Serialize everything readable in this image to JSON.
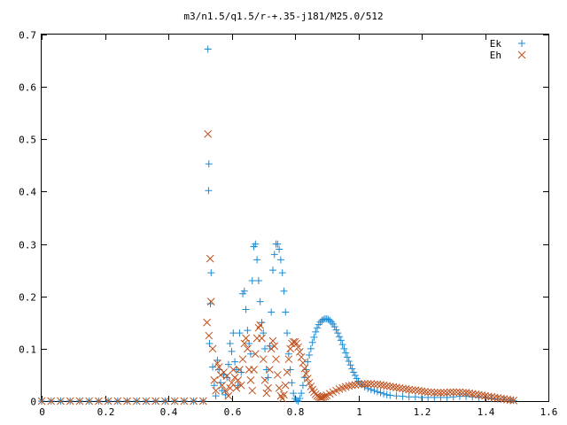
{
  "chart_data": {
    "type": "scatter",
    "title": "m3/n1.5/q1.5/r-+.35-j181/M25.0/512",
    "xlabel": "",
    "ylabel": "",
    "xlim": [
      0,
      1.6
    ],
    "ylim": [
      0,
      0.7
    ],
    "x_tick_labels": [
      "0",
      "0.2",
      "0.4",
      "0.6",
      "0.8",
      "1",
      "1.2",
      "1.4",
      "1.6"
    ],
    "y_tick_labels": [
      "0",
      "0.1",
      "0.2",
      "0.3",
      "0.4",
      "0.5",
      "0.6",
      "0.7"
    ],
    "x_ticks": [
      0,
      0.2,
      0.4,
      0.6,
      0.8,
      1.0,
      1.2,
      1.4,
      1.6
    ],
    "y_ticks": [
      0,
      0.1,
      0.2,
      0.3,
      0.4,
      0.5,
      0.6,
      0.7
    ],
    "grid": false,
    "legend_position": "top-right",
    "series": [
      {
        "name": "Ek",
        "marker": "plus",
        "color": "#1a8ad4",
        "points": [
          [
            0.0,
            0
          ],
          [
            0.03,
            0
          ],
          [
            0.06,
            0
          ],
          [
            0.09,
            0
          ],
          [
            0.12,
            0
          ],
          [
            0.15,
            0
          ],
          [
            0.18,
            0
          ],
          [
            0.21,
            0
          ],
          [
            0.24,
            0
          ],
          [
            0.27,
            0
          ],
          [
            0.3,
            0
          ],
          [
            0.33,
            0
          ],
          [
            0.36,
            0
          ],
          [
            0.39,
            0
          ],
          [
            0.42,
            0
          ],
          [
            0.45,
            0
          ],
          [
            0.48,
            0
          ],
          [
            0.51,
            0
          ],
          [
            0.525,
            0.672
          ],
          [
            0.528,
            0.453
          ],
          [
            0.527,
            0.402
          ],
          [
            0.535,
            0.245
          ],
          [
            0.533,
            0.186
          ],
          [
            0.53,
            0.11
          ],
          [
            0.54,
            0.065
          ],
          [
            0.545,
            0.03
          ],
          [
            0.55,
            0.01
          ],
          [
            0.555,
            0.078
          ],
          [
            0.56,
            0.06
          ],
          [
            0.565,
            0.035
          ],
          [
            0.57,
            0.02
          ],
          [
            0.575,
            0.05
          ],
          [
            0.58,
            0.012
          ],
          [
            0.585,
            0.045
          ],
          [
            0.59,
            0.07
          ],
          [
            0.595,
            0.11
          ],
          [
            0.6,
            0.095
          ],
          [
            0.605,
            0.13
          ],
          [
            0.61,
            0.075
          ],
          [
            0.615,
            0.06
          ],
          [
            0.62,
            0.03
          ],
          [
            0.625,
            0.13
          ],
          [
            0.63,
            0.055
          ],
          [
            0.635,
            0.205
          ],
          [
            0.64,
            0.21
          ],
          [
            0.645,
            0.175
          ],
          [
            0.65,
            0.135
          ],
          [
            0.655,
            0.11
          ],
          [
            0.66,
            0.09
          ],
          [
            0.665,
            0.23
          ],
          [
            0.67,
            0.295
          ],
          [
            0.675,
            0.3
          ],
          [
            0.68,
            0.27
          ],
          [
            0.685,
            0.23
          ],
          [
            0.69,
            0.19
          ],
          [
            0.695,
            0.15
          ],
          [
            0.7,
            0.13
          ],
          [
            0.705,
            0.1
          ],
          [
            0.71,
            0.06
          ],
          [
            0.715,
            0.045
          ],
          [
            0.72,
            0.105
          ],
          [
            0.725,
            0.17
          ],
          [
            0.73,
            0.25
          ],
          [
            0.735,
            0.28
          ],
          [
            0.74,
            0.3
          ],
          [
            0.745,
            0.3
          ],
          [
            0.75,
            0.29
          ],
          [
            0.755,
            0.27
          ],
          [
            0.76,
            0.245
          ],
          [
            0.765,
            0.21
          ],
          [
            0.77,
            0.17
          ],
          [
            0.775,
            0.13
          ],
          [
            0.78,
            0.09
          ],
          [
            0.785,
            0.06
          ],
          [
            0.79,
            0.035
          ],
          [
            0.795,
            0.015
          ],
          [
            0.8,
            0.005
          ],
          [
            0.805,
            0.002
          ],
          [
            0.81,
            0.0
          ],
          [
            0.815,
            0.005
          ],
          [
            0.82,
            0.015
          ],
          [
            0.825,
            0.03
          ],
          [
            0.83,
            0.045
          ],
          [
            0.835,
            0.06
          ],
          [
            0.84,
            0.075
          ],
          [
            0.845,
            0.088
          ],
          [
            0.85,
            0.1
          ],
          [
            0.855,
            0.112
          ],
          [
            0.86,
            0.122
          ],
          [
            0.865,
            0.132
          ],
          [
            0.87,
            0.14
          ],
          [
            0.875,
            0.146
          ],
          [
            0.88,
            0.151
          ],
          [
            0.885,
            0.154
          ],
          [
            0.89,
            0.156
          ],
          [
            0.895,
            0.157
          ],
          [
            0.9,
            0.157
          ],
          [
            0.905,
            0.156
          ],
          [
            0.91,
            0.154
          ],
          [
            0.915,
            0.151
          ],
          [
            0.92,
            0.147
          ],
          [
            0.925,
            0.142
          ],
          [
            0.93,
            0.136
          ],
          [
            0.935,
            0.13
          ],
          [
            0.94,
            0.123
          ],
          [
            0.945,
            0.116
          ],
          [
            0.95,
            0.108
          ],
          [
            0.955,
            0.1
          ],
          [
            0.96,
            0.092
          ],
          [
            0.965,
            0.084
          ],
          [
            0.97,
            0.076
          ],
          [
            0.975,
            0.069
          ],
          [
            0.98,
            0.062
          ],
          [
            0.985,
            0.055
          ],
          [
            0.99,
            0.049
          ],
          [
            0.995,
            0.043
          ],
          [
            1.0,
            0.038
          ],
          [
            1.01,
            0.032
          ],
          [
            1.02,
            0.027
          ],
          [
            1.03,
            0.024
          ],
          [
            1.04,
            0.022
          ],
          [
            1.05,
            0.02
          ],
          [
            1.06,
            0.018
          ],
          [
            1.07,
            0.016
          ],
          [
            1.08,
            0.014
          ],
          [
            1.09,
            0.012
          ],
          [
            1.1,
            0.011
          ],
          [
            1.12,
            0.01
          ],
          [
            1.14,
            0.009
          ],
          [
            1.16,
            0.008
          ],
          [
            1.18,
            0.008
          ],
          [
            1.2,
            0.007
          ],
          [
            1.22,
            0.007
          ],
          [
            1.24,
            0.007
          ],
          [
            1.26,
            0.007
          ],
          [
            1.28,
            0.007
          ],
          [
            1.3,
            0.008
          ],
          [
            1.32,
            0.009
          ],
          [
            1.34,
            0.009
          ],
          [
            1.36,
            0.008
          ],
          [
            1.38,
            0.007
          ],
          [
            1.4,
            0.006
          ],
          [
            1.42,
            0.005
          ],
          [
            1.44,
            0.004
          ],
          [
            1.46,
            0.003
          ],
          [
            1.48,
            0.002
          ],
          [
            1.49,
            0.001
          ]
        ]
      },
      {
        "name": "Eh",
        "marker": "cross",
        "color": "#c0501c",
        "points": [
          [
            0.0,
            0
          ],
          [
            0.03,
            0
          ],
          [
            0.06,
            0
          ],
          [
            0.09,
            0
          ],
          [
            0.12,
            0
          ],
          [
            0.15,
            0
          ],
          [
            0.18,
            0
          ],
          [
            0.21,
            0
          ],
          [
            0.24,
            0
          ],
          [
            0.27,
            0
          ],
          [
            0.3,
            0
          ],
          [
            0.33,
            0
          ],
          [
            0.36,
            0
          ],
          [
            0.39,
            0
          ],
          [
            0.42,
            0
          ],
          [
            0.45,
            0
          ],
          [
            0.48,
            0
          ],
          [
            0.51,
            0
          ],
          [
            0.525,
            0.51
          ],
          [
            0.532,
            0.272
          ],
          [
            0.535,
            0.19
          ],
          [
            0.522,
            0.15
          ],
          [
            0.528,
            0.125
          ],
          [
            0.54,
            0.1
          ],
          [
            0.545,
            0.04
          ],
          [
            0.55,
            0.02
          ],
          [
            0.555,
            0.072
          ],
          [
            0.56,
            0.065
          ],
          [
            0.565,
            0.05
          ],
          [
            0.57,
            0.03
          ],
          [
            0.575,
            0.055
          ],
          [
            0.58,
            0.02
          ],
          [
            0.585,
            0.048
          ],
          [
            0.59,
            0.01
          ],
          [
            0.595,
            0.025
          ],
          [
            0.6,
            0.035
          ],
          [
            0.605,
            0.06
          ],
          [
            0.61,
            0.045
          ],
          [
            0.615,
            0.025
          ],
          [
            0.62,
            0.04
          ],
          [
            0.625,
            0.06
          ],
          [
            0.63,
            0.03
          ],
          [
            0.635,
            0.08
          ],
          [
            0.64,
            0.11
          ],
          [
            0.645,
            0.12
          ],
          [
            0.65,
            0.1
          ],
          [
            0.655,
            0.06
          ],
          [
            0.66,
            0.04
          ],
          [
            0.665,
            0.02
          ],
          [
            0.67,
            0.06
          ],
          [
            0.675,
            0.09
          ],
          [
            0.68,
            0.12
          ],
          [
            0.685,
            0.14
          ],
          [
            0.69,
            0.145
          ],
          [
            0.695,
            0.12
          ],
          [
            0.7,
            0.08
          ],
          [
            0.705,
            0.04
          ],
          [
            0.71,
            0.015
          ],
          [
            0.715,
            0.025
          ],
          [
            0.72,
            0.06
          ],
          [
            0.725,
            0.1
          ],
          [
            0.73,
            0.115
          ],
          [
            0.735,
            0.105
          ],
          [
            0.74,
            0.08
          ],
          [
            0.745,
            0.05
          ],
          [
            0.75,
            0.025
          ],
          [
            0.755,
            0.01
          ],
          [
            0.76,
            0.005
          ],
          [
            0.765,
            0.012
          ],
          [
            0.77,
            0.03
          ],
          [
            0.775,
            0.055
          ],
          [
            0.78,
            0.08
          ],
          [
            0.785,
            0.1
          ],
          [
            0.79,
            0.11
          ],
          [
            0.795,
            0.113
          ],
          [
            0.8,
            0.113
          ],
          [
            0.805,
            0.11
          ],
          [
            0.81,
            0.103
          ],
          [
            0.815,
            0.094
          ],
          [
            0.82,
            0.084
          ],
          [
            0.825,
            0.073
          ],
          [
            0.83,
            0.062
          ],
          [
            0.835,
            0.052
          ],
          [
            0.84,
            0.043
          ],
          [
            0.845,
            0.035
          ],
          [
            0.85,
            0.028
          ],
          [
            0.855,
            0.022
          ],
          [
            0.86,
            0.017
          ],
          [
            0.865,
            0.013
          ],
          [
            0.87,
            0.01
          ],
          [
            0.875,
            0.008
          ],
          [
            0.88,
            0.007
          ],
          [
            0.885,
            0.007
          ],
          [
            0.89,
            0.008
          ],
          [
            0.895,
            0.009
          ],
          [
            0.9,
            0.011
          ],
          [
            0.91,
            0.014
          ],
          [
            0.92,
            0.017
          ],
          [
            0.93,
            0.02
          ],
          [
            0.94,
            0.023
          ],
          [
            0.95,
            0.025
          ],
          [
            0.96,
            0.027
          ],
          [
            0.97,
            0.029
          ],
          [
            0.98,
            0.03
          ],
          [
            0.99,
            0.031
          ],
          [
            1.0,
            0.032
          ],
          [
            1.01,
            0.032
          ],
          [
            1.02,
            0.033
          ],
          [
            1.03,
            0.033
          ],
          [
            1.04,
            0.033
          ],
          [
            1.05,
            0.032
          ],
          [
            1.06,
            0.032
          ],
          [
            1.07,
            0.031
          ],
          [
            1.08,
            0.03
          ],
          [
            1.09,
            0.029
          ],
          [
            1.1,
            0.028
          ],
          [
            1.11,
            0.027
          ],
          [
            1.12,
            0.026
          ],
          [
            1.13,
            0.025
          ],
          [
            1.14,
            0.024
          ],
          [
            1.15,
            0.023
          ],
          [
            1.16,
            0.022
          ],
          [
            1.17,
            0.021
          ],
          [
            1.18,
            0.021
          ],
          [
            1.19,
            0.02
          ],
          [
            1.2,
            0.019
          ],
          [
            1.21,
            0.018
          ],
          [
            1.22,
            0.017
          ],
          [
            1.23,
            0.017
          ],
          [
            1.24,
            0.016
          ],
          [
            1.25,
            0.016
          ],
          [
            1.26,
            0.016
          ],
          [
            1.27,
            0.016
          ],
          [
            1.28,
            0.016
          ],
          [
            1.29,
            0.017
          ],
          [
            1.3,
            0.017
          ],
          [
            1.31,
            0.017
          ],
          [
            1.32,
            0.017
          ],
          [
            1.33,
            0.016
          ],
          [
            1.34,
            0.016
          ],
          [
            1.35,
            0.015
          ],
          [
            1.36,
            0.014
          ],
          [
            1.37,
            0.013
          ],
          [
            1.38,
            0.012
          ],
          [
            1.39,
            0.011
          ],
          [
            1.4,
            0.01
          ],
          [
            1.41,
            0.009
          ],
          [
            1.42,
            0.008
          ],
          [
            1.43,
            0.007
          ],
          [
            1.44,
            0.006
          ],
          [
            1.45,
            0.005
          ],
          [
            1.46,
            0.004
          ],
          [
            1.47,
            0.003
          ],
          [
            1.48,
            0.002
          ],
          [
            1.49,
            0.001
          ]
        ]
      }
    ]
  }
}
